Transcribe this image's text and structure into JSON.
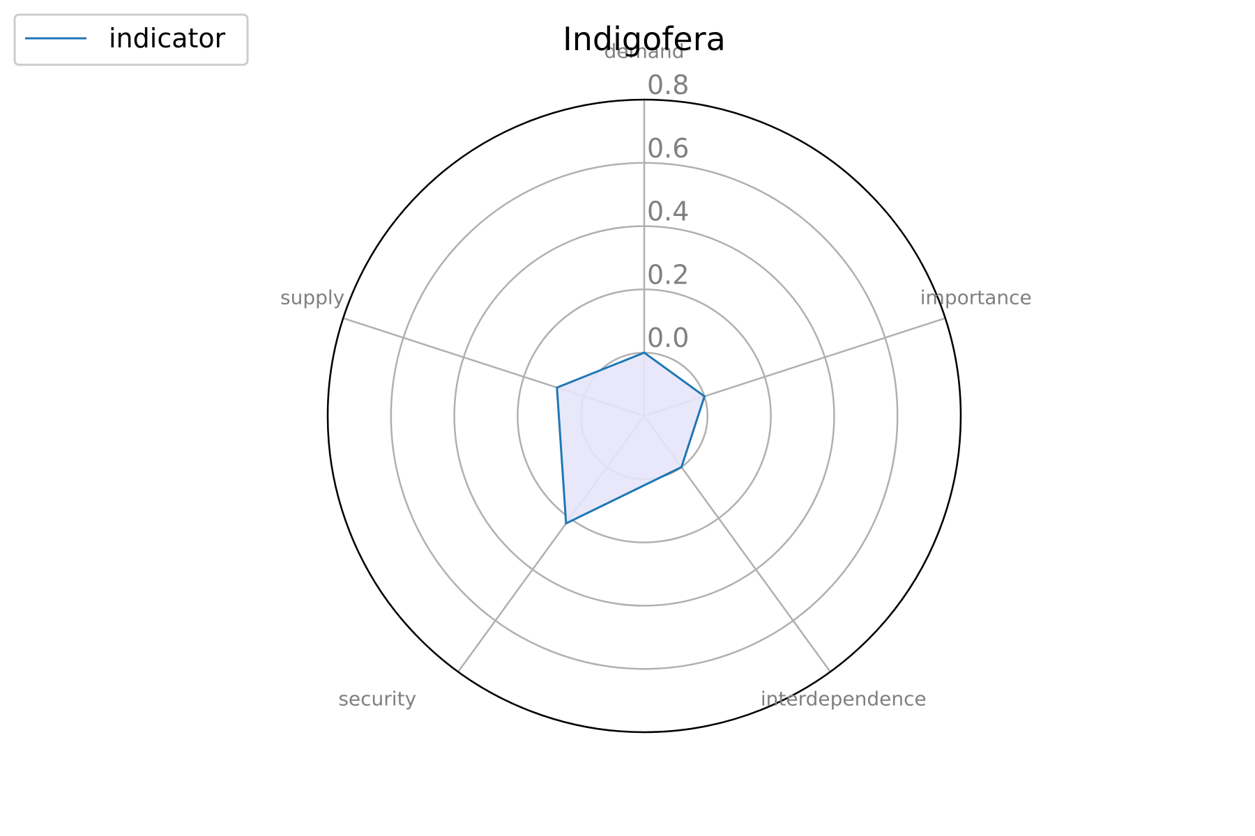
{
  "chart_data": {
    "type": "radar",
    "title": "Indigofera",
    "categories": [
      "demand",
      "importance",
      "interdependence",
      "security",
      "supply"
    ],
    "series": [
      {
        "name": "indicator",
        "values": [
          0.0,
          0.0,
          0.0,
          0.22,
          0.09
        ]
      }
    ],
    "r_ticks": [
      "0.0",
      "0.2",
      "0.4",
      "0.6",
      "0.8"
    ],
    "r_tick_values": [
      0.0,
      0.2,
      0.4,
      0.6,
      0.8
    ],
    "rlim": [
      -0.2,
      0.8
    ],
    "grid": true,
    "legend_position": "top-left",
    "colors": {
      "line": "#1f77b4",
      "fill": "#e6e6fa",
      "grid": "#b0b0b0",
      "frame": "#000000",
      "label": "#808080"
    }
  }
}
